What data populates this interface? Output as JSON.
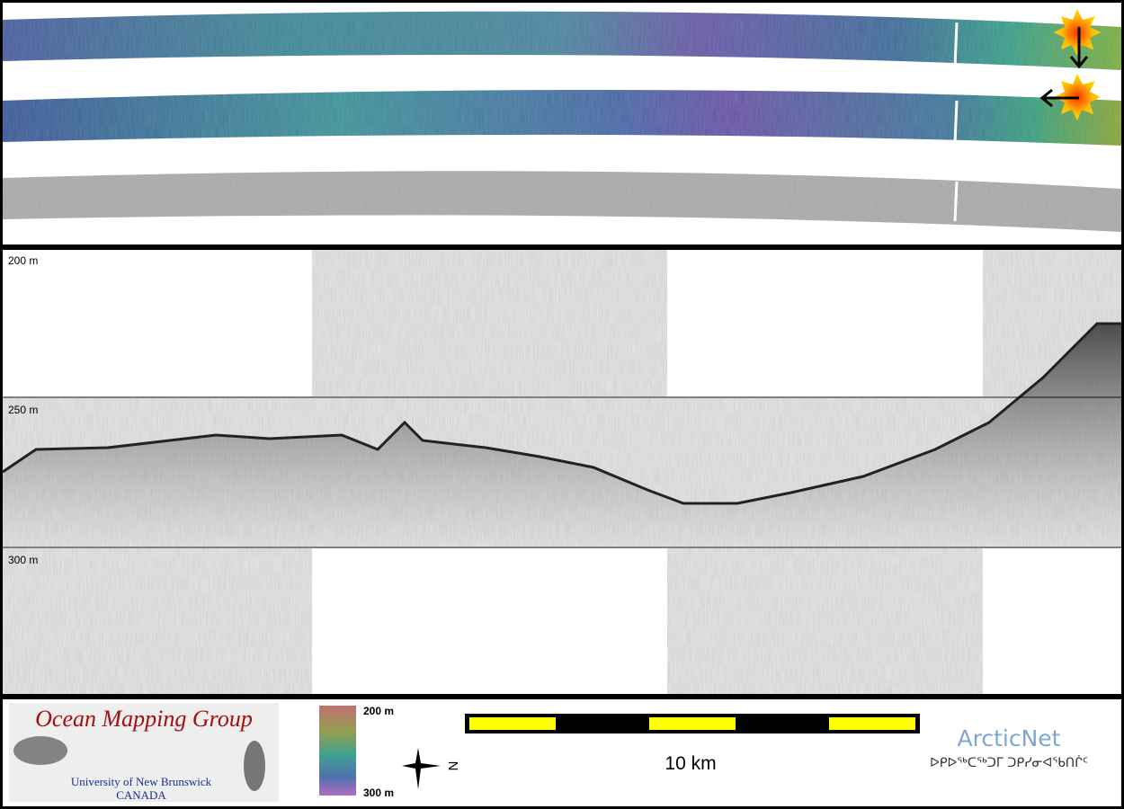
{
  "profile_panel": {
    "depth_labels": [
      "200 m",
      "250 m",
      "300 m"
    ]
  },
  "footer": {
    "logo": {
      "title": "Ocean Mapping Group",
      "institution": "University of New Brunswick",
      "country": "CANADA"
    },
    "colorbar": {
      "top_label": "200 m",
      "bottom_label": "300 m"
    },
    "compass": "N",
    "scale_bar": "10 km",
    "partner": {
      "name": "ArcticNet",
      "syllabics": "ᐅᑭᐅᖅᑕᖅᑐᒥ ᑐᑭᓯᓂᐊᖃᑎᒌᑦ"
    }
  }
}
